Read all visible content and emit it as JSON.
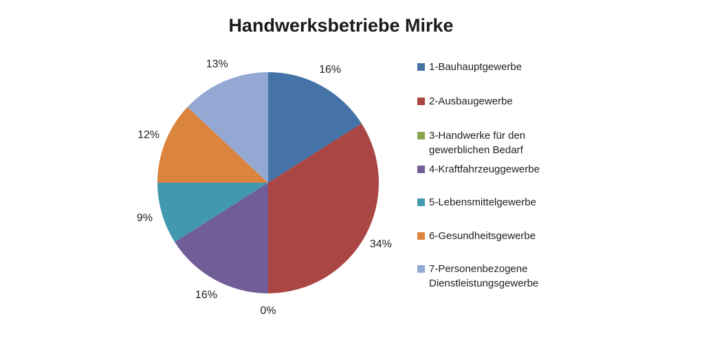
{
  "title": "Handwerksbetriebe Mirke",
  "chart_data": {
    "type": "pie",
    "title": "Handwerksbetriebe Mirke",
    "unit": "%",
    "legend_position": "right",
    "start_angle_deg": 0,
    "direction": "clockwise",
    "segments": [
      {
        "label": "1-Bauhauptgewerbe",
        "value": 16,
        "percent_label": "16%",
        "color": "#4572A7"
      },
      {
        "label": "2-Ausbaugewerbe",
        "value": 34,
        "percent_label": "34%",
        "color": "#AA4643"
      },
      {
        "label": "3-Handwerke für den\ngewerblichen Bedarf",
        "value": 0,
        "percent_label": "0%",
        "color": "#89A54E"
      },
      {
        "label": "4-Kraftfahrzeuggewerbe",
        "value": 16,
        "percent_label": "16%",
        "color": "#715D97"
      },
      {
        "label": "5-Lebensmittelgewerbe",
        "value": 9,
        "percent_label": "9%",
        "color": "#4198AF"
      },
      {
        "label": "6-Gesundheitsgewerbe",
        "value": 12,
        "percent_label": "12%",
        "color": "#DB843D"
      },
      {
        "label": "7-Personenbezogene\nDienstleistungsgewerbe",
        "value": 13,
        "percent_label": "13%",
        "color": "#93A9D4"
      }
    ]
  }
}
